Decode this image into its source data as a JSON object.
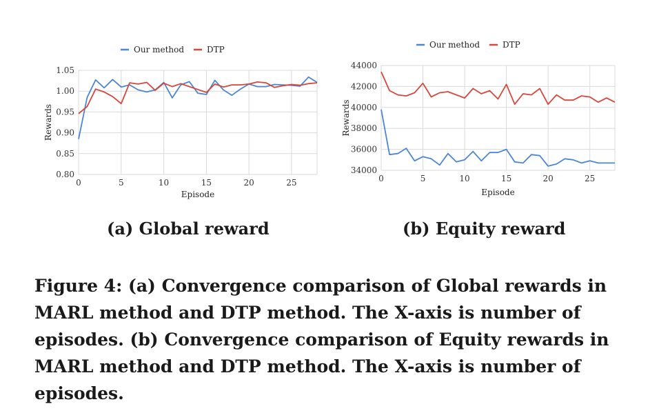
{
  "chart_data": [
    {
      "type": "line",
      "xlabel": "Episode",
      "ylabel": "Rewards",
      "xlim": [
        0,
        28
      ],
      "ylim": [
        0.8,
        1.05
      ],
      "xticks": [
        0,
        5,
        10,
        15,
        20,
        25
      ],
      "yticks": [
        "0.80",
        "0.85",
        "0.90",
        "0.95",
        "1.00",
        "1.05"
      ],
      "legend_position": "top-center",
      "grid": true,
      "x": [
        0,
        1,
        2,
        3,
        4,
        5,
        6,
        7,
        8,
        9,
        10,
        11,
        12,
        13,
        14,
        15,
        16,
        17,
        18,
        19,
        20,
        21,
        22,
        23,
        24,
        25,
        26,
        27,
        28
      ],
      "series": [
        {
          "name": "Our method",
          "color": "#4a86d4",
          "values": [
            0.885,
            0.985,
            1.027,
            1.008,
            1.028,
            1.01,
            1.015,
            1.003,
            0.998,
            1.003,
            1.021,
            0.984,
            1.015,
            1.023,
            0.995,
            0.992,
            1.026,
            1.003,
            0.99,
            1.005,
            1.017,
            1.011,
            1.011,
            1.016,
            1.015,
            1.014,
            1.012,
            1.034,
            1.021
          ]
        },
        {
          "name": "DTP",
          "color": "#d9453a",
          "values": [
            0.946,
            0.963,
            1.005,
            0.998,
            0.987,
            0.97,
            1.02,
            1.017,
            1.021,
            1.002,
            1.019,
            1.011,
            1.018,
            1.011,
            1.004,
            0.997,
            1.017,
            1.01,
            1.015,
            1.015,
            1.017,
            1.022,
            1.02,
            1.009,
            1.013,
            1.016,
            1.014,
            1.018,
            1.02
          ]
        }
      ]
    },
    {
      "type": "line",
      "xlabel": "Episode",
      "ylabel": "Rewards",
      "xlim": [
        0,
        28
      ],
      "ylim": [
        34000,
        44000
      ],
      "xticks": [
        0,
        5,
        10,
        15,
        20,
        25
      ],
      "yticks": [
        "34000",
        "36000",
        "38000",
        "40000",
        "42000",
        "44000"
      ],
      "legend_position": "top-center",
      "grid": true,
      "x": [
        0,
        1,
        2,
        3,
        4,
        5,
        6,
        7,
        8,
        9,
        10,
        11,
        12,
        13,
        14,
        15,
        16,
        17,
        18,
        19,
        20,
        21,
        22,
        23,
        24,
        25,
        26,
        27,
        28
      ],
      "series": [
        {
          "name": "Our method",
          "color": "#4a86d4",
          "values": [
            39800,
            35500,
            35600,
            36100,
            34900,
            35300,
            35100,
            34500,
            35600,
            34800,
            35000,
            35800,
            34900,
            35700,
            35700,
            36000,
            34800,
            34700,
            35500,
            35400,
            34400,
            34600,
            35100,
            35000,
            34700,
            34900,
            34700,
            34700,
            34700
          ]
        },
        {
          "name": "DTP",
          "color": "#d9453a",
          "values": [
            43400,
            41600,
            41200,
            41100,
            41400,
            42300,
            41000,
            41400,
            41500,
            41200,
            40900,
            41800,
            41300,
            41600,
            40800,
            42200,
            40300,
            41300,
            41200,
            41800,
            40300,
            41200,
            40700,
            40700,
            41100,
            41000,
            40500,
            40900,
            40500
          ]
        }
      ]
    }
  ],
  "subcaptions": {
    "a": "(a) Global reward",
    "b": "(b) Equity reward"
  },
  "caption": "Figure 4: (a) Convergence comparison of Global rewards in MARL method and DTP method. The X-axis is number of episodes. (b) Convergence comparison of Equity rewards in MARL method and DTP method. The X-axis is number of episodes."
}
